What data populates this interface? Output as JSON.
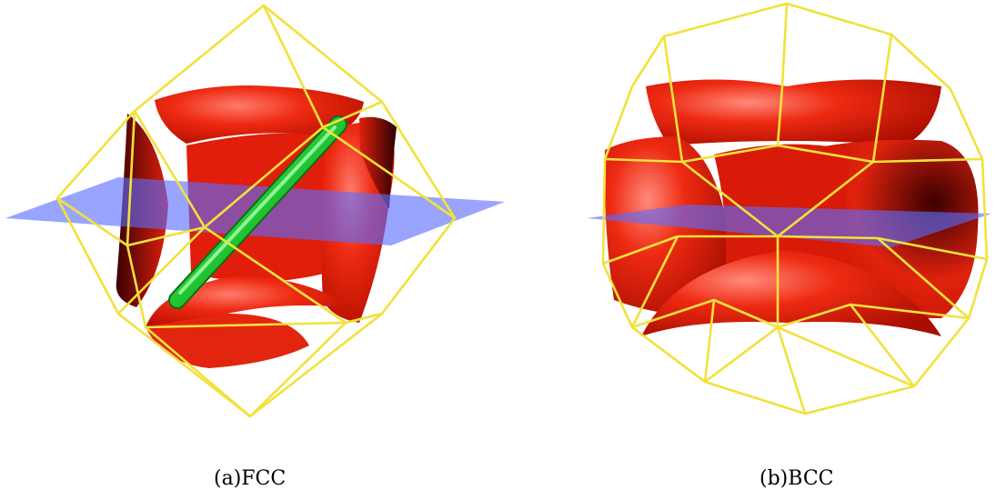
{
  "figure": {
    "panels": [
      {
        "id": "a",
        "caption": "(a)FCC"
      },
      {
        "id": "b",
        "caption": "(b)BCC"
      }
    ]
  },
  "colors": {
    "frame": "#f1e23a",
    "surface": "#e8210e",
    "surface_dark": "#4a0000",
    "plane": "#5a6cff",
    "rod": "#22c532"
  }
}
